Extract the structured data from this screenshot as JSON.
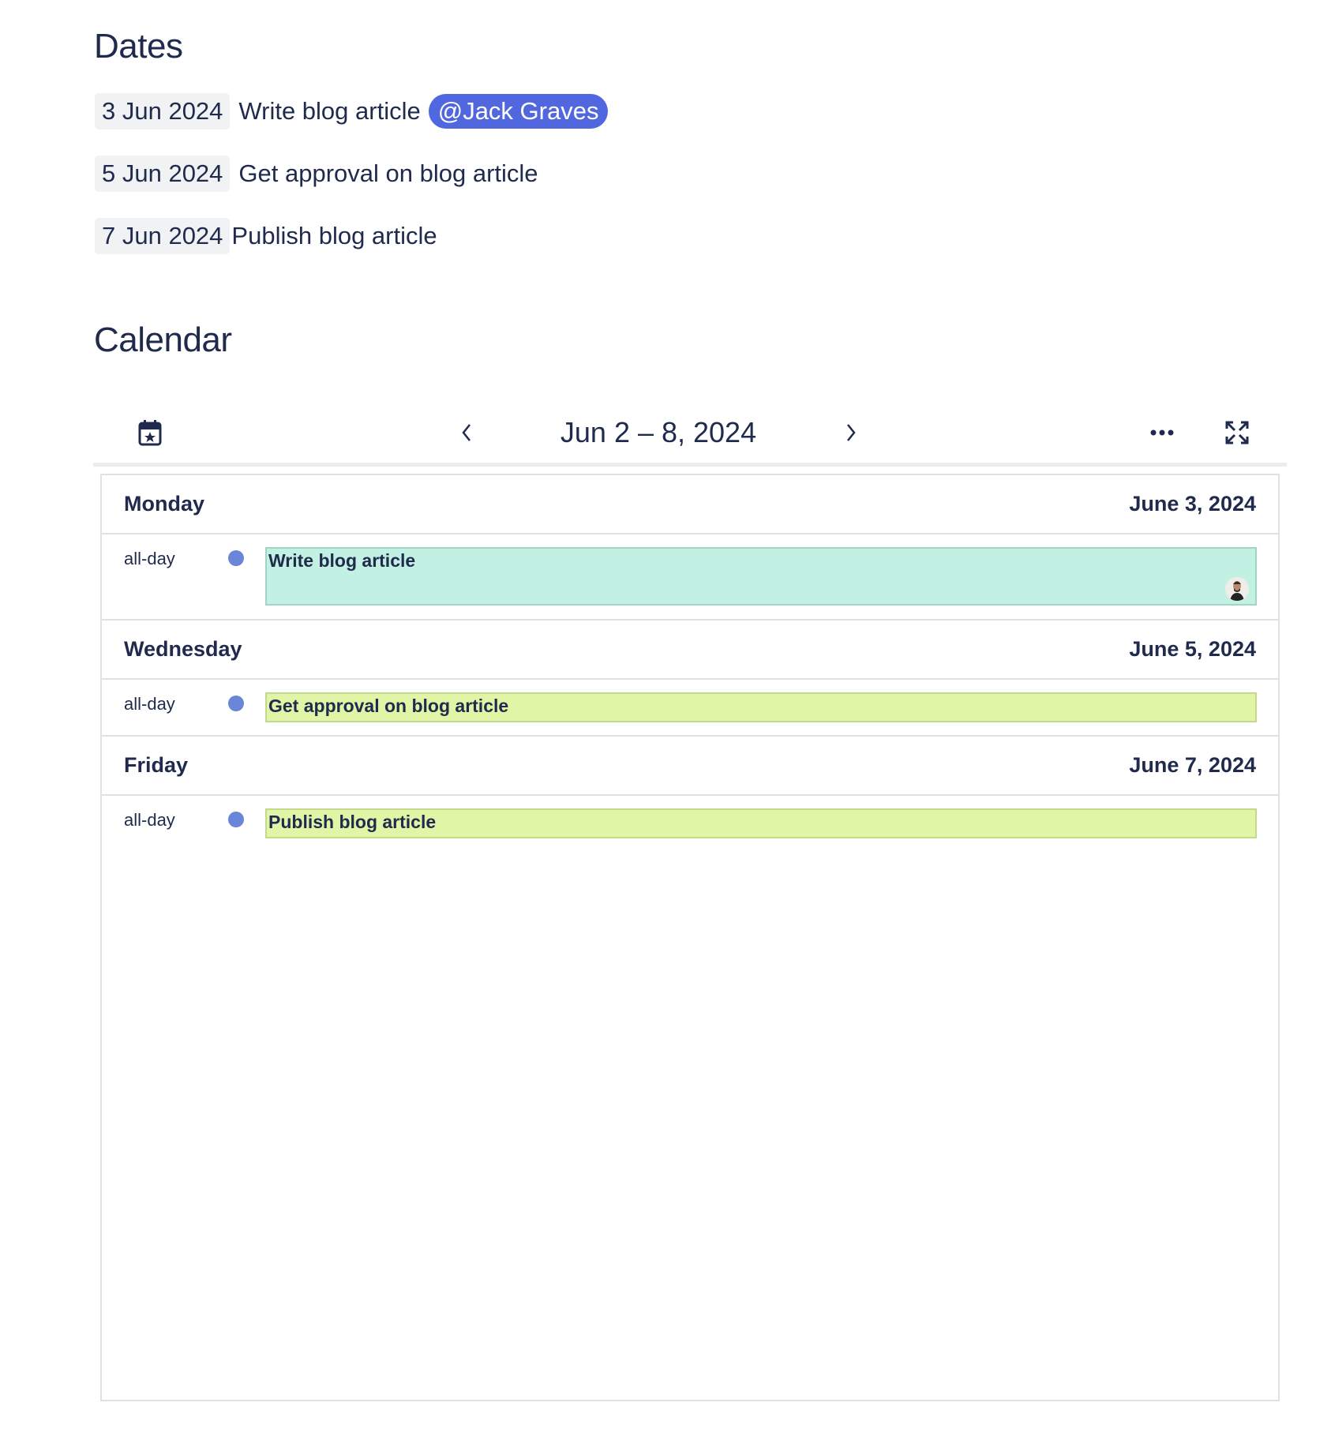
{
  "dates_section": {
    "heading": "Dates",
    "items": [
      {
        "date": "3 Jun 2024",
        "text": "Write blog article",
        "mention": "@Jack Graves"
      },
      {
        "date": "5 Jun 2024",
        "text": "Get approval on blog article"
      },
      {
        "date": "7 Jun 2024",
        "text": "Publish blog article"
      }
    ]
  },
  "calendar_section": {
    "heading": "Calendar",
    "toolbar": {
      "title": "Jun 2 – 8, 2024",
      "icons": [
        "calendar-star-icon",
        "chevron-left-icon",
        "chevron-right-icon",
        "more-icon",
        "expand-icon"
      ]
    },
    "days": [
      {
        "weekday": "Monday",
        "date": "June 3, 2024",
        "allday_label": "all-day",
        "event": "Write blog article",
        "color": "#c2f0e2",
        "border": "#9fd6c6",
        "assignee_avatar": true
      },
      {
        "weekday": "Wednesday",
        "date": "June 5, 2024",
        "allday_label": "all-day",
        "event": "Get approval on blog article",
        "color": "#e1f5a6",
        "border": "#c5d98c"
      },
      {
        "weekday": "Friday",
        "date": "June 7, 2024",
        "allday_label": "all-day",
        "event": "Publish blog article",
        "color": "#e1f5a6",
        "border": "#c5d98c"
      }
    ]
  }
}
